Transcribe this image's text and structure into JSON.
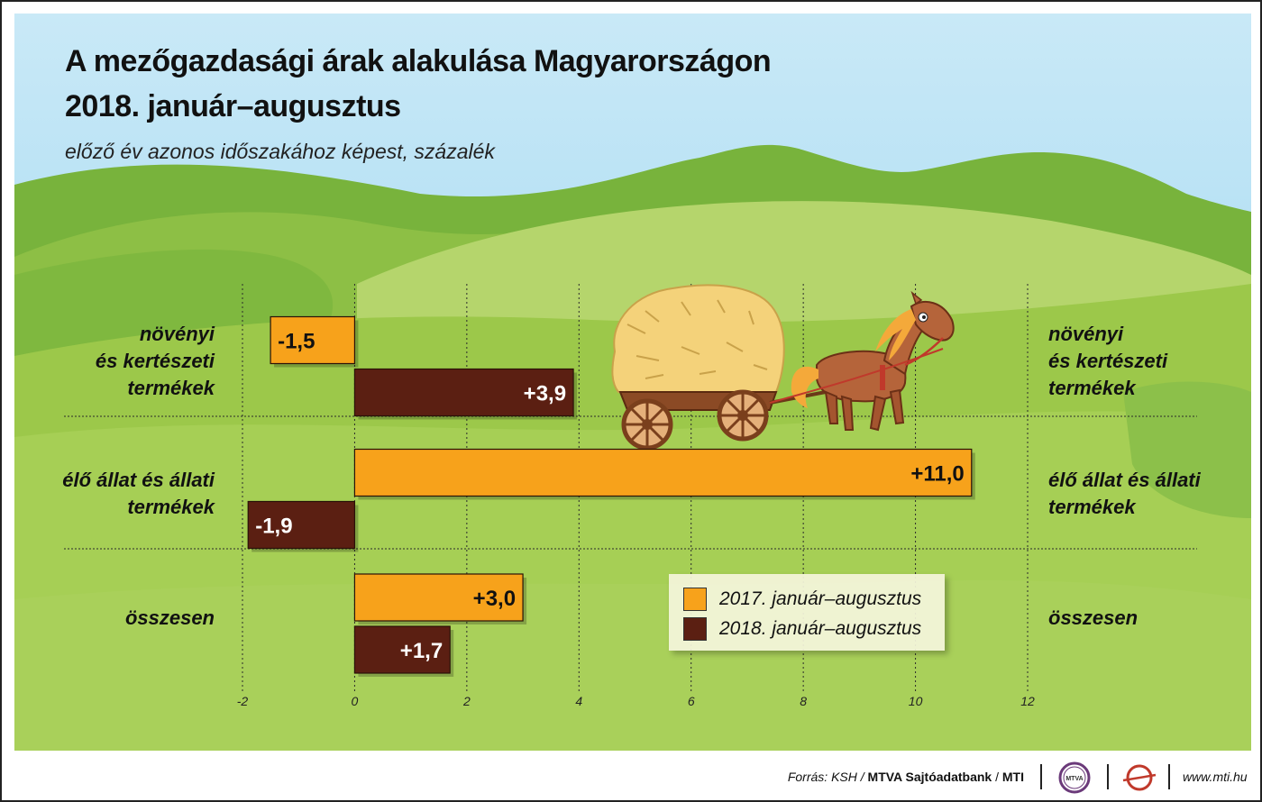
{
  "title_line1": "A mezőgazdasági árak alakulása Magyarországon",
  "title_line2": "2018. január–augusztus",
  "subtitle": "előző év azonos időszakához képest, százalék",
  "chart_data": {
    "type": "bar",
    "orientation": "horizontal",
    "categories": [
      [
        "növényi",
        "és kertészeti",
        "termékek"
      ],
      [
        "élő állat és állati",
        "termékek"
      ],
      [
        "összesen"
      ]
    ],
    "series": [
      {
        "name": "2017. január–augusztus",
        "color": "#f7a21b",
        "values": [
          -1.5,
          11.0,
          3.0
        ],
        "labels": [
          "-1,5",
          "+11,0",
          "+3,0"
        ]
      },
      {
        "name": "2018. január–augusztus",
        "color": "#5b1f12",
        "values": [
          3.9,
          -1.9,
          1.7
        ],
        "labels": [
          "+3,9",
          "-1,9",
          "+1,7"
        ]
      }
    ],
    "xlim": [
      -2,
      12
    ],
    "xticks": [
      -2,
      0,
      2,
      4,
      6,
      8,
      10,
      12
    ],
    "xtick_labels": [
      "-2",
      "0",
      "2",
      "4",
      "6",
      "8",
      "10",
      "12"
    ],
    "grid": "vertical dotted",
    "legend": "bottom-right"
  },
  "footer": {
    "source_prefix": "Forrás: KSH / ",
    "source_bold": "MTVA Sajtóadatbank",
    "source_sep": " / ",
    "source_mti": "MTI",
    "logo_text": "MTVA",
    "website": "www.mti.hu"
  },
  "colors": {
    "sky": "#a9d9f0",
    "grass": "#9cc84a",
    "hills": "#6da83a",
    "orange": "#f7a21b",
    "brown": "#5b1f12"
  },
  "illustration": "horse-drawn-hay-cart"
}
